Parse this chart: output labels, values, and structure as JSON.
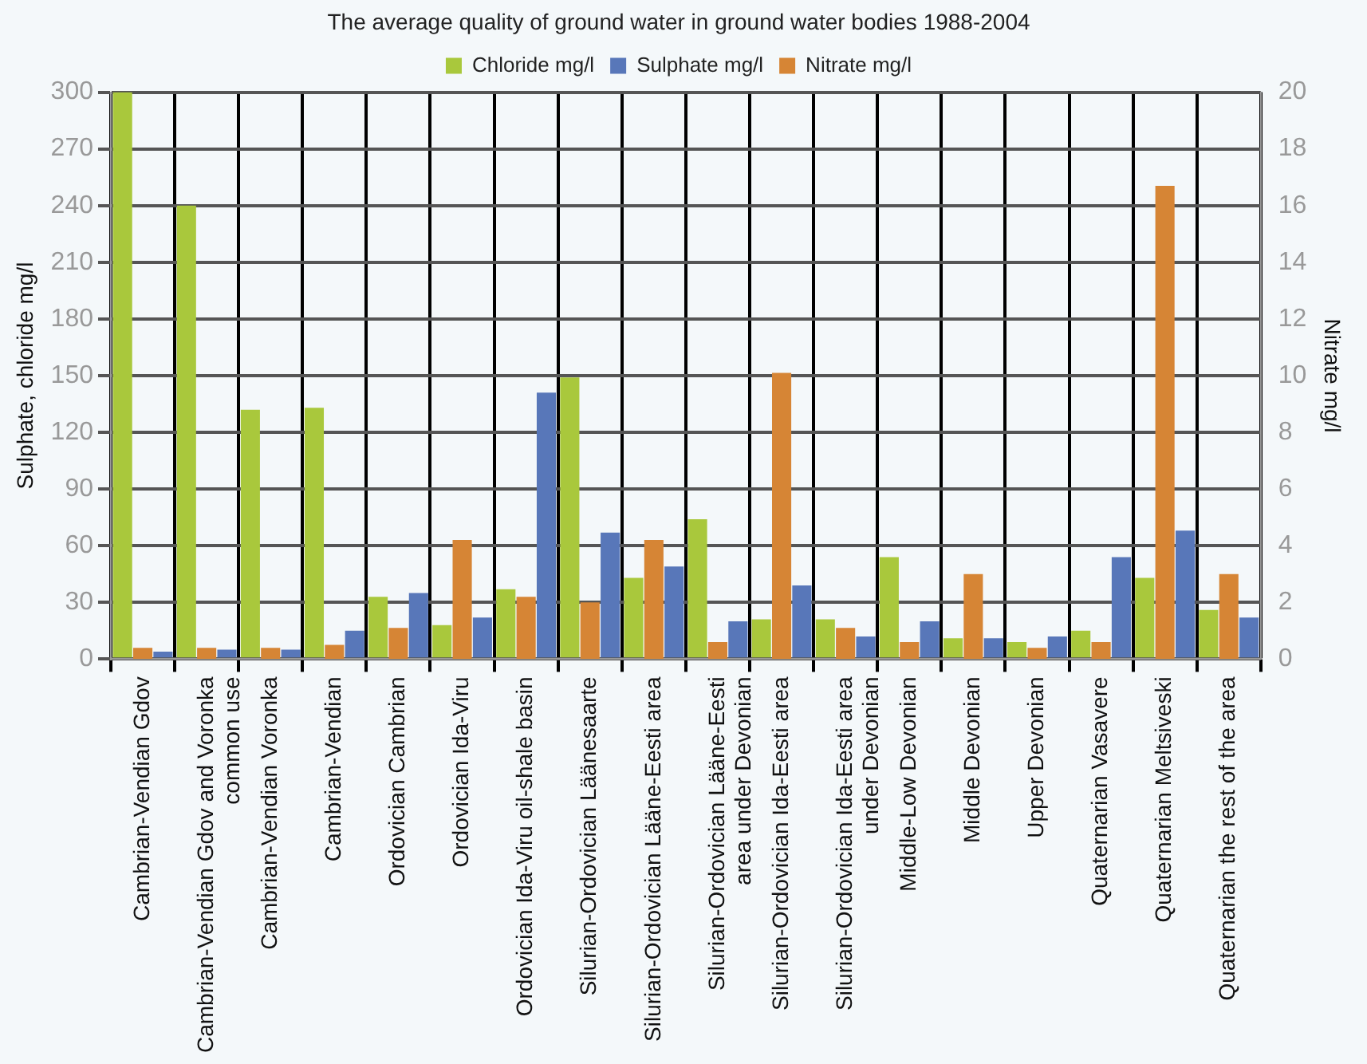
{
  "chart_data": {
    "type": "bar",
    "title": "The average quality of ground water in ground water bodies 1988-2004",
    "categories": [
      "Cambrian-Vendian Gdov",
      "Cambrian-Vendian Gdov and Voronka common use",
      "Cambrian-Vendian Voronka",
      "Cambrian-Vendian",
      "Ordovician Cambrian",
      "Ordovician Ida-Viru",
      "Ordovician Ida-Viru oil-shale basin",
      "Silurian-Ordovician Läänesaarte",
      "Silurian-Ordovician Lääne-Eesti area",
      "Silurian-Ordovician Lääne-Eesti area under Devonian",
      "Silurian-Ordovician Ida-Eesti area",
      "Silurian-Ordovician Ida-Eesti area under Devonian",
      "Middle-Low Devonian",
      "Middle Devonian",
      "Upper Devonian",
      "Quaternarian Vasavere",
      "Quaternarian Meltsiveski",
      "Quaternarian the rest of the area"
    ],
    "series": [
      {
        "name": "Chloride mg/l",
        "color": "#a9c83c",
        "values": [
          300,
          240,
          132,
          133,
          33,
          18,
          37,
          149,
          43,
          74,
          21,
          21,
          54,
          11,
          9,
          15,
          43,
          26
        ]
      },
      {
        "name": "Sulphate mg/l",
        "color": "#5877b9",
        "values": [
          4,
          5,
          5,
          15,
          35,
          22,
          141,
          67,
          49,
          20,
          39,
          12,
          20,
          11,
          12,
          54,
          68,
          22
        ]
      },
      {
        "name": "Nitrate mg/l",
        "color": "#d68535",
        "axis": "y2",
        "values": [
          0.4,
          0.4,
          0.4,
          0.5,
          1.1,
          4.2,
          2.2,
          2.0,
          4.2,
          0.6,
          10.1,
          1.1,
          0.6,
          3.0,
          0.4,
          0.6,
          16.7,
          3.0
        ]
      }
    ],
    "ylabel": "Sulphate, chloride mg/l",
    "y2label": "Nitrate mg/l",
    "ylim": [
      0,
      300
    ],
    "yticks": [
      0,
      30,
      60,
      90,
      120,
      150,
      180,
      210,
      240,
      270,
      300
    ],
    "y2lim": [
      0,
      20
    ],
    "y2ticks": [
      0,
      2,
      4,
      6,
      8,
      10,
      12,
      14,
      16,
      18,
      20
    ],
    "grid": true,
    "legend": "top"
  }
}
